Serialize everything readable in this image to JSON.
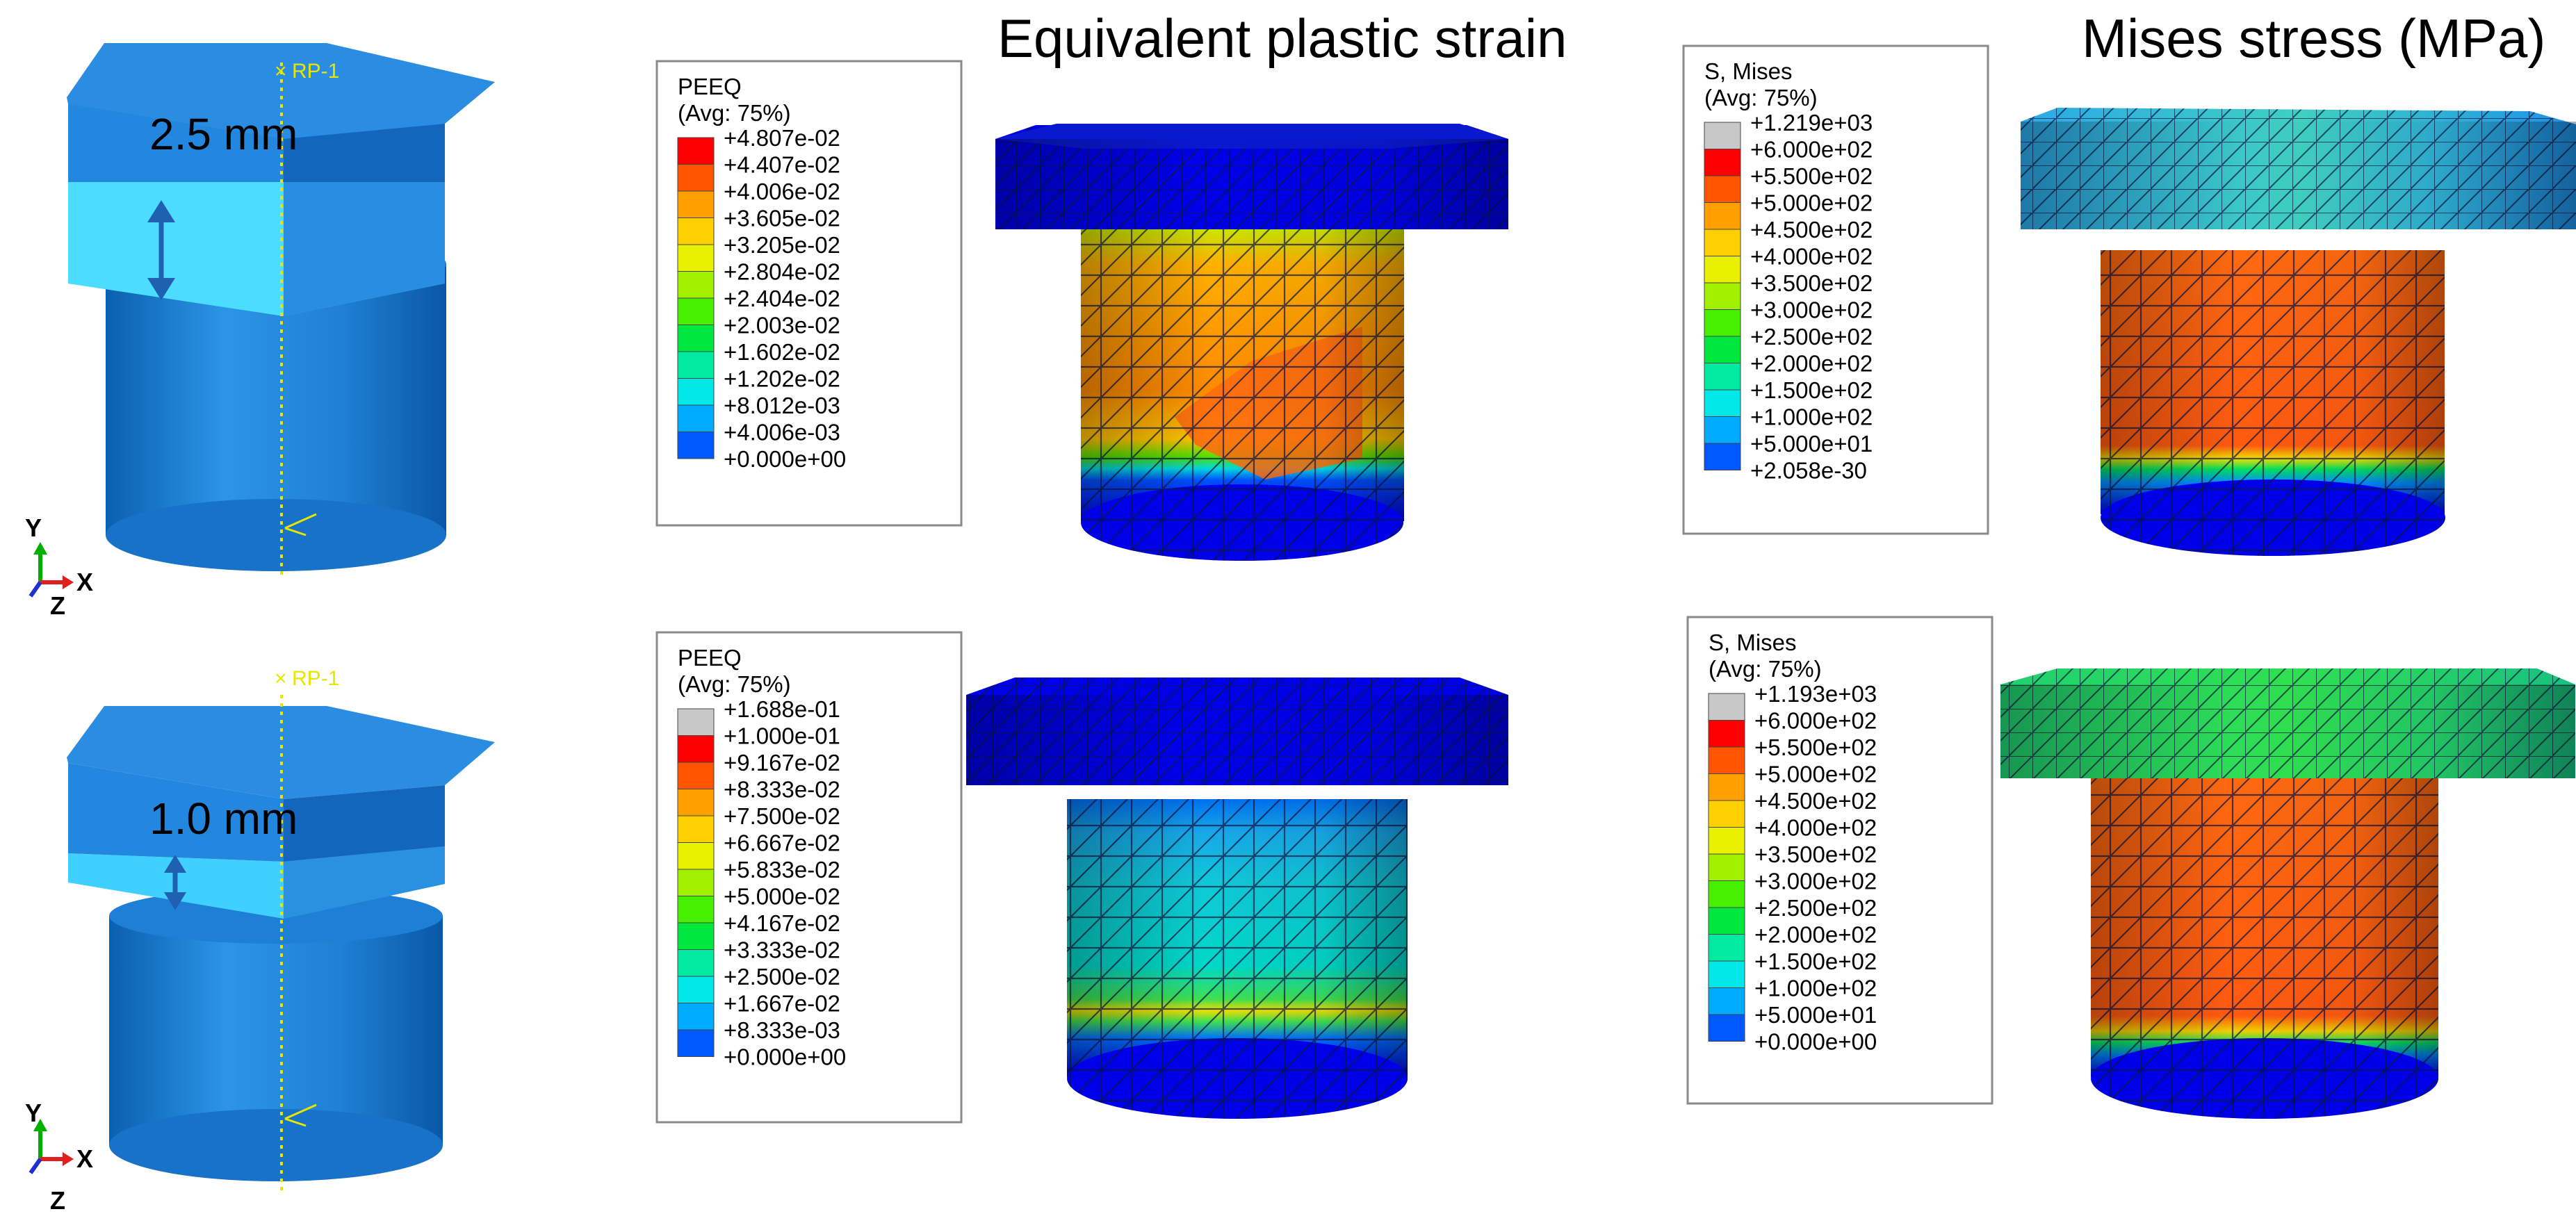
{
  "titles": {
    "strain": "Equivalent plastic strain",
    "stress": "Mises stress (MPa)"
  },
  "rows": [
    {
      "thickness_label": "2.5 mm",
      "rp_label": "RP-1",
      "axes": {
        "y": "Y",
        "x": "X",
        "z": "Z"
      },
      "peeq_legend": {
        "title": "PEEQ",
        "subtitle": "(Avg: 75%)",
        "values": [
          "+4.807e-02",
          "+4.407e-02",
          "+4.006e-02",
          "+3.605e-02",
          "+3.205e-02",
          "+2.804e-02",
          "+2.404e-02",
          "+2.003e-02",
          "+1.602e-02",
          "+1.202e-02",
          "+8.012e-03",
          "+4.006e-03",
          "+0.000e+00"
        ],
        "colors": [
          "#ff0000",
          "#ff5500",
          "#ff9f00",
          "#ffd000",
          "#e9f000",
          "#a0f000",
          "#47f000",
          "#00e83e",
          "#00eaa2",
          "#00e8e8",
          "#00aaff",
          "#0058ff",
          "#0000ff"
        ]
      },
      "mises_legend": {
        "title": "S, Mises",
        "subtitle": "(Avg: 75%)",
        "values": [
          "+1.219e+03",
          "+6.000e+02",
          "+5.500e+02",
          "+5.000e+02",
          "+4.500e+02",
          "+4.000e+02",
          "+3.500e+02",
          "+3.000e+02",
          "+2.500e+02",
          "+2.000e+02",
          "+1.500e+02",
          "+1.000e+02",
          "+5.000e+01",
          "+2.058e-30"
        ],
        "colors": [
          "#c8c8c8",
          "#ff0000",
          "#ff5500",
          "#ff9f00",
          "#ffd000",
          "#e9f000",
          "#a0f000",
          "#47f000",
          "#00e83e",
          "#00eaa2",
          "#00e8e8",
          "#00aaff",
          "#0058ff",
          "#0000ff"
        ]
      }
    },
    {
      "thickness_label": "1.0 mm",
      "rp_label": "RP-1",
      "axes": {
        "y": "Y",
        "x": "X",
        "z": "Z"
      },
      "peeq_legend": {
        "title": "PEEQ",
        "subtitle": "(Avg: 75%)",
        "values": [
          "+1.688e-01",
          "+1.000e-01",
          "+9.167e-02",
          "+8.333e-02",
          "+7.500e-02",
          "+6.667e-02",
          "+5.833e-02",
          "+5.000e-02",
          "+4.167e-02",
          "+3.333e-02",
          "+2.500e-02",
          "+1.667e-02",
          "+8.333e-03",
          "+0.000e+00"
        ],
        "colors": [
          "#c8c8c8",
          "#ff0000",
          "#ff5500",
          "#ff9f00",
          "#ffd000",
          "#e9f000",
          "#a0f000",
          "#47f000",
          "#00e83e",
          "#00eaa2",
          "#00e8e8",
          "#00aaff",
          "#0058ff",
          "#0000ff"
        ]
      },
      "mises_legend": {
        "title": "S, Mises",
        "subtitle": "(Avg: 75%)",
        "values": [
          "+1.193e+03",
          "+6.000e+02",
          "+5.500e+02",
          "+5.000e+02",
          "+4.500e+02",
          "+4.000e+02",
          "+3.500e+02",
          "+3.000e+02",
          "+2.500e+02",
          "+2.000e+02",
          "+1.500e+02",
          "+1.000e+02",
          "+5.000e+01",
          "+0.000e+00"
        ],
        "colors": [
          "#c8c8c8",
          "#ff0000",
          "#ff5500",
          "#ff9f00",
          "#ffd000",
          "#e9f000",
          "#a0f000",
          "#47f000",
          "#00e83e",
          "#00eaa2",
          "#00e8e8",
          "#00aaff",
          "#0058ff",
          "#0000ff"
        ]
      }
    }
  ]
}
